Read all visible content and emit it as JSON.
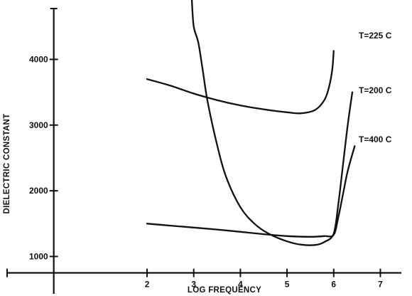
{
  "chart_data": {
    "type": "line",
    "title": "",
    "xlabel": "LOG FREQUENCY",
    "ylabel": "DIELECTRIC CONSTANT",
    "xlim": [
      -1,
      7.45
    ],
    "ylim": [
      550,
      4850
    ],
    "x_ticks": [
      2,
      3,
      4,
      5,
      6,
      7
    ],
    "y_ticks": [
      1000,
      2000,
      3000,
      4000
    ],
    "grid": false,
    "series": [
      {
        "name": "T=225 C",
        "x": [
          2.0,
          2.5,
          3.0,
          3.5,
          4.0,
          4.5,
          5.0,
          5.3,
          5.6,
          5.8,
          5.9,
          5.97,
          6.0
        ],
        "y": [
          3700,
          3600,
          3480,
          3380,
          3300,
          3240,
          3195,
          3180,
          3230,
          3380,
          3580,
          3850,
          4130
        ]
      },
      {
        "name": "T=200 C",
        "x": [
          2.96,
          3.0,
          3.1,
          3.2,
          3.3,
          3.5,
          3.7,
          4.0,
          4.3,
          4.6,
          5.0,
          5.3,
          5.6,
          5.8,
          6.0,
          6.1,
          6.2,
          6.3,
          6.4
        ],
        "y": [
          4900,
          4500,
          4250,
          3800,
          3350,
          2700,
          2200,
          1750,
          1500,
          1350,
          1230,
          1180,
          1175,
          1220,
          1350,
          1800,
          2400,
          3000,
          3500
        ]
      },
      {
        "name": "T=400 C",
        "x": [
          2.0,
          2.5,
          3.0,
          3.5,
          4.0,
          4.5,
          5.0,
          5.5,
          5.8,
          6.0,
          6.1,
          6.2,
          6.3,
          6.45
        ],
        "y": [
          1500,
          1470,
          1440,
          1410,
          1375,
          1340,
          1310,
          1300,
          1310,
          1330,
          1600,
          1950,
          2300,
          2680
        ]
      }
    ]
  }
}
